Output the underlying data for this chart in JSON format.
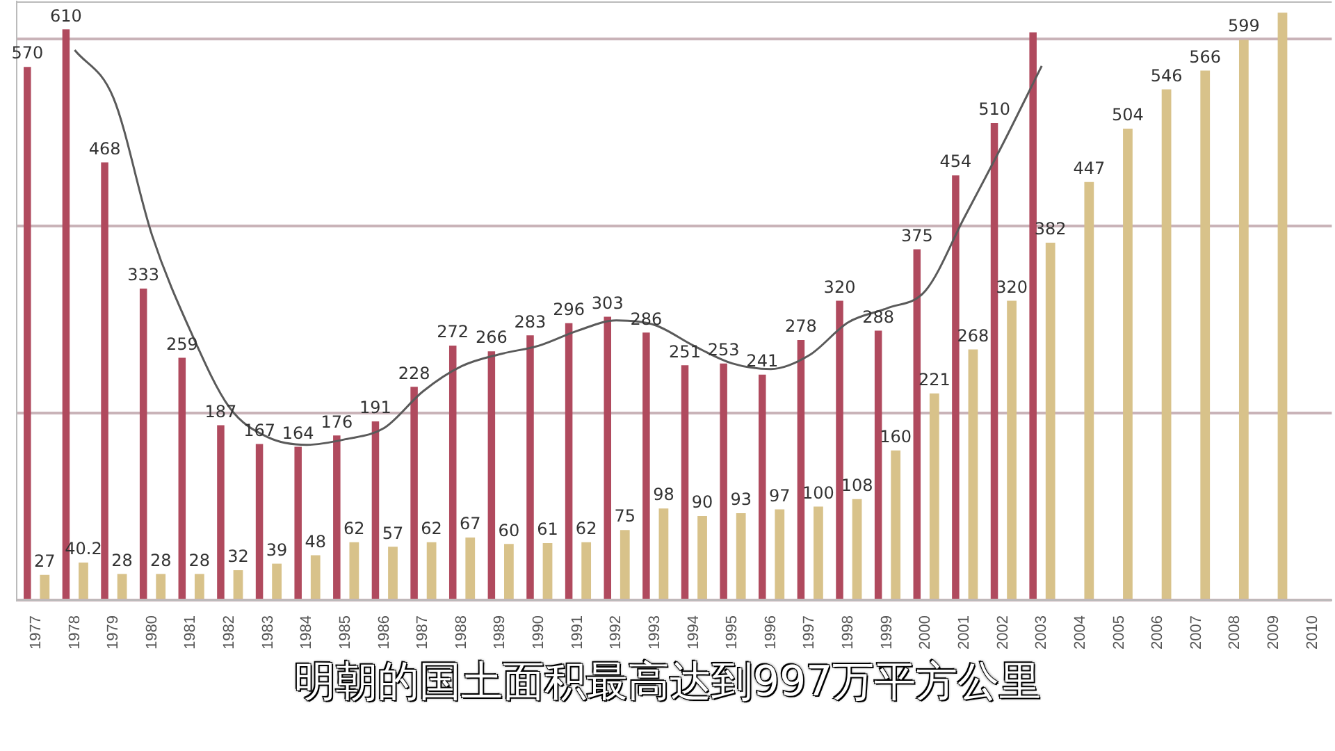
{
  "chart_data": {
    "type": "bar",
    "categories": [
      "1977",
      "1978",
      "1979",
      "1980",
      "1981",
      "1982",
      "1983",
      "1984",
      "1985",
      "1986",
      "1987",
      "1988",
      "1989",
      "1990",
      "1991",
      "1992",
      "1993",
      "1994",
      "1995",
      "1996",
      "1997",
      "1998",
      "1999",
      "2000",
      "2001",
      "2002",
      "2003",
      "2004",
      "2005",
      "2006",
      "2007",
      "2008",
      "2009",
      "2010"
    ],
    "series": [
      {
        "color": "#b04a5e",
        "values": [
          570,
          610,
          468,
          333,
          259,
          187,
          167,
          164,
          176,
          191,
          228,
          272,
          266,
          283,
          296,
          303,
          286,
          251,
          253,
          241,
          278,
          320,
          288,
          375,
          454,
          510,
          607,
          null,
          null,
          null,
          null,
          null,
          null,
          null
        ],
        "value_labels": [
          "570",
          "610",
          "468",
          "333",
          "259",
          "187",
          "167",
          "164",
          "176",
          "191",
          "228",
          "272",
          "266",
          "283",
          "296",
          "303",
          "286",
          "251",
          "253",
          "241",
          "278",
          "320",
          "288",
          "375",
          "454",
          "510",
          null,
          null,
          null,
          null,
          null,
          null,
          null,
          null
        ]
      },
      {
        "color": "#d8c28a",
        "values": [
          27,
          40.2,
          28,
          28,
          28,
          32,
          39,
          48,
          62,
          57,
          62,
          67,
          60,
          61,
          62,
          75,
          98,
          90,
          93,
          97,
          100,
          108,
          160,
          221,
          268,
          320,
          382,
          447,
          504,
          546,
          566,
          599,
          628,
          null
        ],
        "value_labels": [
          "27",
          "40.2",
          "28",
          "28",
          "28",
          "32",
          "39",
          "48",
          "62",
          "57",
          "62",
          "67",
          "60",
          "61",
          "62",
          "75",
          "98",
          "90",
          "93",
          "97",
          "100",
          "108",
          "160",
          "221",
          "268",
          "320",
          "382",
          "447",
          "504",
          "546",
          "566",
          "599",
          null,
          null
        ]
      },
      {
        "type": "line",
        "color": "#5a5a5a",
        "values": [
          null,
          588,
          537,
          390,
          287,
          206,
          174,
          166,
          172,
          184,
          223,
          250,
          263,
          272,
          288,
          299,
          294,
          272,
          253,
          247,
          262,
          297,
          312,
          331,
          409,
          488,
          571,
          null,
          null,
          null,
          null,
          null,
          null,
          null
        ]
      }
    ],
    "ylim": [
      0,
      640
    ],
    "yticks": [
      {
        "value": 0,
        "label": null
      },
      {
        "value": 200,
        "label": null
      },
      {
        "value": 400,
        "label": null
      },
      {
        "value": 600,
        "label": null
      }
    ],
    "grid": "y",
    "tick_labels": "x",
    "legend": false,
    "marker": "none",
    "annotations": [
      "明朝的国土面积最高达到997万平方公里"
    ]
  }
}
